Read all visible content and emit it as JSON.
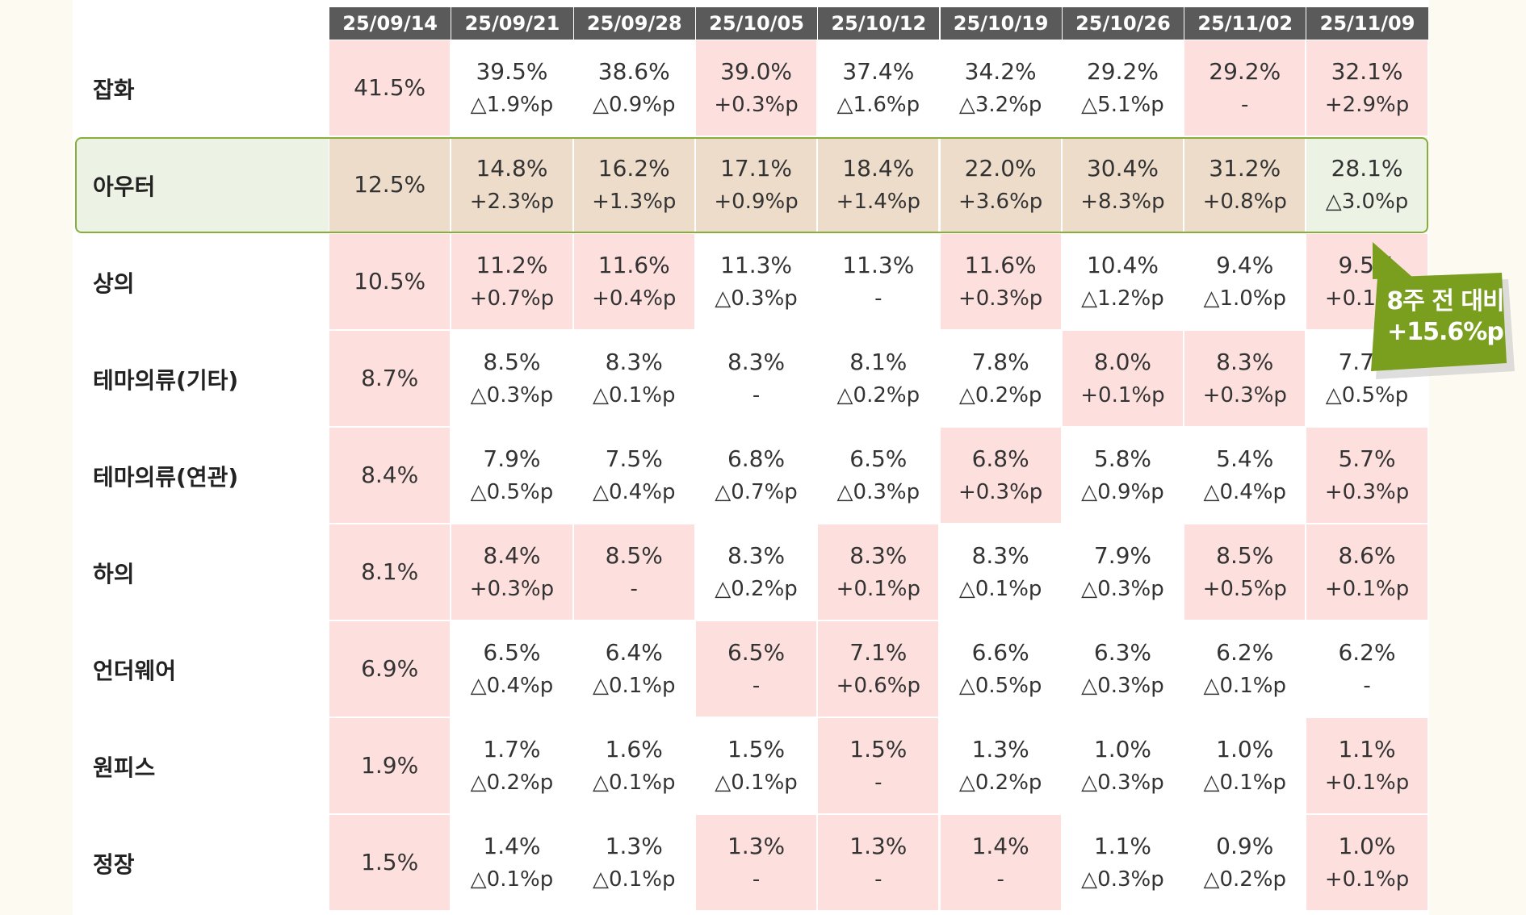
{
  "chart_data": {
    "type": "table",
    "columns": [
      "25/09/14",
      "25/09/21",
      "25/09/28",
      "25/10/05",
      "25/10/12",
      "25/10/19",
      "25/10/26",
      "25/11/02",
      "25/11/09"
    ],
    "rows": [
      {
        "label": "잡화",
        "highlighted": false,
        "cells": [
          {
            "pct": "41.5%",
            "chg": "",
            "up": true
          },
          {
            "pct": "39.5%",
            "chg": "△1.9%p",
            "up": false
          },
          {
            "pct": "38.6%",
            "chg": "△0.9%p",
            "up": false
          },
          {
            "pct": "39.0%",
            "chg": "+0.3%p",
            "up": true
          },
          {
            "pct": "37.4%",
            "chg": "△1.6%p",
            "up": false
          },
          {
            "pct": "34.2%",
            "chg": "△3.2%p",
            "up": false
          },
          {
            "pct": "29.2%",
            "chg": "△5.1%p",
            "up": false
          },
          {
            "pct": "29.2%",
            "chg": "-",
            "up": true
          },
          {
            "pct": "32.1%",
            "chg": "+2.9%p",
            "up": true
          }
        ]
      },
      {
        "label": "아우터",
        "highlighted": true,
        "cells": [
          {
            "pct": "12.5%",
            "chg": "",
            "up": true
          },
          {
            "pct": "14.8%",
            "chg": "+2.3%p",
            "up": true
          },
          {
            "pct": "16.2%",
            "chg": "+1.3%p",
            "up": true
          },
          {
            "pct": "17.1%",
            "chg": "+0.9%p",
            "up": true
          },
          {
            "pct": "18.4%",
            "chg": "+1.4%p",
            "up": true
          },
          {
            "pct": "22.0%",
            "chg": "+3.6%p",
            "up": true
          },
          {
            "pct": "30.4%",
            "chg": "+8.3%p",
            "up": true
          },
          {
            "pct": "31.2%",
            "chg": "+0.8%p",
            "up": true
          },
          {
            "pct": "28.1%",
            "chg": "△3.0%p",
            "up": false
          }
        ]
      },
      {
        "label": "상의",
        "highlighted": false,
        "cells": [
          {
            "pct": "10.5%",
            "chg": "",
            "up": true
          },
          {
            "pct": "11.2%",
            "chg": "+0.7%p",
            "up": true
          },
          {
            "pct": "11.6%",
            "chg": "+0.4%p",
            "up": true
          },
          {
            "pct": "11.3%",
            "chg": "△0.3%p",
            "up": false
          },
          {
            "pct": "11.3%",
            "chg": "-",
            "up": false
          },
          {
            "pct": "11.6%",
            "chg": "+0.3%p",
            "up": true
          },
          {
            "pct": "10.4%",
            "chg": "△1.2%p",
            "up": false
          },
          {
            "pct": "9.4%",
            "chg": "△1.0%p",
            "up": false
          },
          {
            "pct": "9.5%",
            "chg": "+0.1%p",
            "up": true
          }
        ]
      },
      {
        "label": "테마의류(기타)",
        "highlighted": false,
        "cells": [
          {
            "pct": "8.7%",
            "chg": "",
            "up": true
          },
          {
            "pct": "8.5%",
            "chg": "△0.3%p",
            "up": false
          },
          {
            "pct": "8.3%",
            "chg": "△0.1%p",
            "up": false
          },
          {
            "pct": "8.3%",
            "chg": "-",
            "up": false
          },
          {
            "pct": "8.1%",
            "chg": "△0.2%p",
            "up": false
          },
          {
            "pct": "7.8%",
            "chg": "△0.2%p",
            "up": false
          },
          {
            "pct": "8.0%",
            "chg": "+0.1%p",
            "up": true
          },
          {
            "pct": "8.3%",
            "chg": "+0.3%p",
            "up": true
          },
          {
            "pct": "7.7%",
            "chg": "△0.5%p",
            "up": false
          }
        ]
      },
      {
        "label": "테마의류(연관)",
        "highlighted": false,
        "cells": [
          {
            "pct": "8.4%",
            "chg": "",
            "up": true
          },
          {
            "pct": "7.9%",
            "chg": "△0.5%p",
            "up": false
          },
          {
            "pct": "7.5%",
            "chg": "△0.4%p",
            "up": false
          },
          {
            "pct": "6.8%",
            "chg": "△0.7%p",
            "up": false
          },
          {
            "pct": "6.5%",
            "chg": "△0.3%p",
            "up": false
          },
          {
            "pct": "6.8%",
            "chg": "+0.3%p",
            "up": true
          },
          {
            "pct": "5.8%",
            "chg": "△0.9%p",
            "up": false
          },
          {
            "pct": "5.4%",
            "chg": "△0.4%p",
            "up": false
          },
          {
            "pct": "5.7%",
            "chg": "+0.3%p",
            "up": true
          }
        ]
      },
      {
        "label": "하의",
        "highlighted": false,
        "cells": [
          {
            "pct": "8.1%",
            "chg": "",
            "up": true
          },
          {
            "pct": "8.4%",
            "chg": "+0.3%p",
            "up": true
          },
          {
            "pct": "8.5%",
            "chg": "-",
            "up": true
          },
          {
            "pct": "8.3%",
            "chg": "△0.2%p",
            "up": false
          },
          {
            "pct": "8.3%",
            "chg": "+0.1%p",
            "up": true
          },
          {
            "pct": "8.3%",
            "chg": "△0.1%p",
            "up": false
          },
          {
            "pct": "7.9%",
            "chg": "△0.3%p",
            "up": false
          },
          {
            "pct": "8.5%",
            "chg": "+0.5%p",
            "up": true
          },
          {
            "pct": "8.6%",
            "chg": "+0.1%p",
            "up": true
          }
        ]
      },
      {
        "label": "언더웨어",
        "highlighted": false,
        "cells": [
          {
            "pct": "6.9%",
            "chg": "",
            "up": true
          },
          {
            "pct": "6.5%",
            "chg": "△0.4%p",
            "up": false
          },
          {
            "pct": "6.4%",
            "chg": "△0.1%p",
            "up": false
          },
          {
            "pct": "6.5%",
            "chg": "-",
            "up": true
          },
          {
            "pct": "7.1%",
            "chg": "+0.6%p",
            "up": true
          },
          {
            "pct": "6.6%",
            "chg": "△0.5%p",
            "up": false
          },
          {
            "pct": "6.3%",
            "chg": "△0.3%p",
            "up": false
          },
          {
            "pct": "6.2%",
            "chg": "△0.1%p",
            "up": false
          },
          {
            "pct": "6.2%",
            "chg": "-",
            "up": false
          }
        ]
      },
      {
        "label": "원피스",
        "highlighted": false,
        "cells": [
          {
            "pct": "1.9%",
            "chg": "",
            "up": true
          },
          {
            "pct": "1.7%",
            "chg": "△0.2%p",
            "up": false
          },
          {
            "pct": "1.6%",
            "chg": "△0.1%p",
            "up": false
          },
          {
            "pct": "1.5%",
            "chg": "△0.1%p",
            "up": false
          },
          {
            "pct": "1.5%",
            "chg": "-",
            "up": true
          },
          {
            "pct": "1.3%",
            "chg": "△0.2%p",
            "up": false
          },
          {
            "pct": "1.0%",
            "chg": "△0.3%p",
            "up": false
          },
          {
            "pct": "1.0%",
            "chg": "△0.1%p",
            "up": false
          },
          {
            "pct": "1.1%",
            "chg": "+0.1%p",
            "up": true
          }
        ]
      },
      {
        "label": "정장",
        "highlighted": false,
        "cells": [
          {
            "pct": "1.5%",
            "chg": "",
            "up": true
          },
          {
            "pct": "1.4%",
            "chg": "△0.1%p",
            "up": false
          },
          {
            "pct": "1.3%",
            "chg": "△0.1%p",
            "up": false
          },
          {
            "pct": "1.3%",
            "chg": "-",
            "up": true
          },
          {
            "pct": "1.3%",
            "chg": "-",
            "up": true
          },
          {
            "pct": "1.4%",
            "chg": "-",
            "up": true
          },
          {
            "pct": "1.1%",
            "chg": "△0.3%p",
            "up": false
          },
          {
            "pct": "0.9%",
            "chg": "△0.2%p",
            "up": false
          },
          {
            "pct": "1.0%",
            "chg": "+0.1%p",
            "up": true
          }
        ]
      }
    ]
  },
  "callout": {
    "text_line1": "8주 전 대비",
    "text_line2": "+15.6%p",
    "color": "#7a9e1e"
  },
  "colors": {
    "header_bg": "#5a5a5a",
    "highlight_cell": "#fde0de",
    "outer_row_cell": "#eddcca",
    "outer_row_frame": "#88ad3c",
    "outer_row_bg": "#edf3e4"
  }
}
